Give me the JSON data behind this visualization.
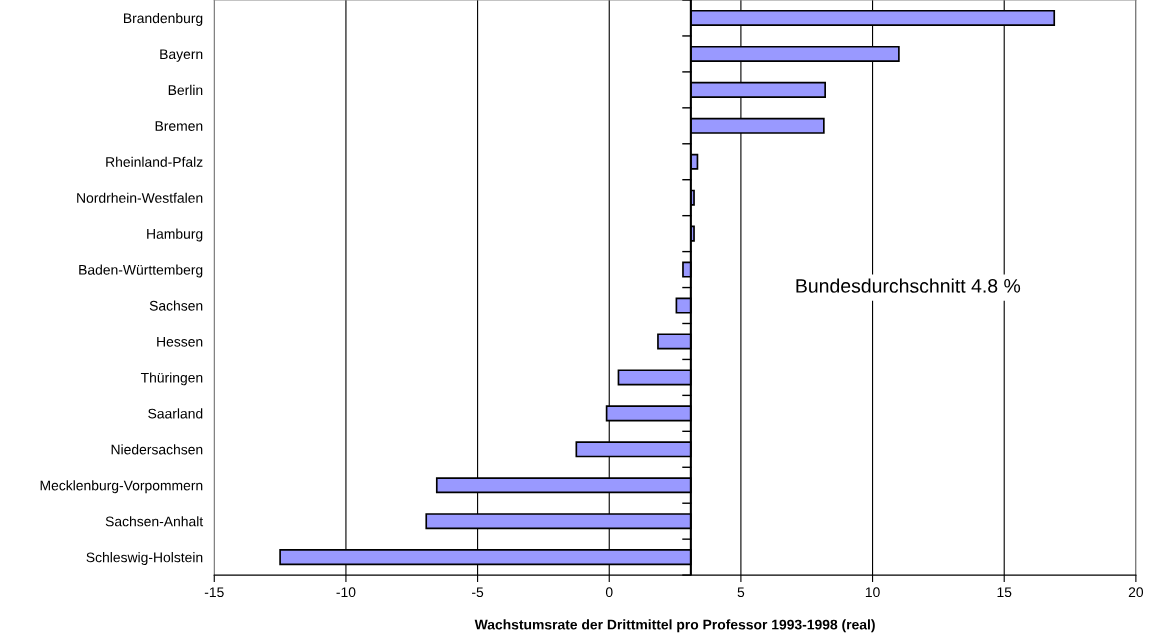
{
  "chart_data": {
    "type": "bar",
    "orientation": "horizontal",
    "xlabel": "Wachstumsrate der Drittmittel pro Professor 1993-1998 (real)",
    "categories": [
      "Brandenburg",
      "Bayern",
      "Berlin",
      "Bremen",
      "Rheinland-Pfalz",
      "Nordrhein-Westfalen",
      "Hamburg",
      "Baden-Württemberg",
      "Sachsen",
      "Hessen",
      "Thüringen",
      "Saarland",
      "Niedersachsen",
      "Mecklenburg-Vorpommern",
      "Sachsen-Anhalt",
      "Schleswig-Holstein"
    ],
    "base": [
      3.1,
      3.1,
      3.1,
      3.1,
      3.1,
      3.1,
      3.1,
      3.1,
      3.1,
      3.1,
      3.1,
      3.1,
      3.1,
      3.1,
      3.1,
      3.1
    ],
    "values": [
      13.8,
      7.9,
      5.1,
      5.05,
      0.25,
      0.12,
      0.12,
      -0.3,
      -0.55,
      -1.25,
      -2.75,
      -3.2,
      -4.35,
      -9.65,
      -10.05,
      -15.6
    ],
    "color": "#9999ff",
    "xlim": [
      -15,
      20
    ],
    "xticks": [
      -15,
      -10,
      -5,
      0,
      5,
      10,
      15,
      20
    ],
    "grid": "x",
    "ref_lines": [
      {
        "axis": "x",
        "value": 3.1,
        "color": "#000000"
      }
    ],
    "annotations": [
      "Bundesdurchschnitt 4.8 %"
    ]
  }
}
